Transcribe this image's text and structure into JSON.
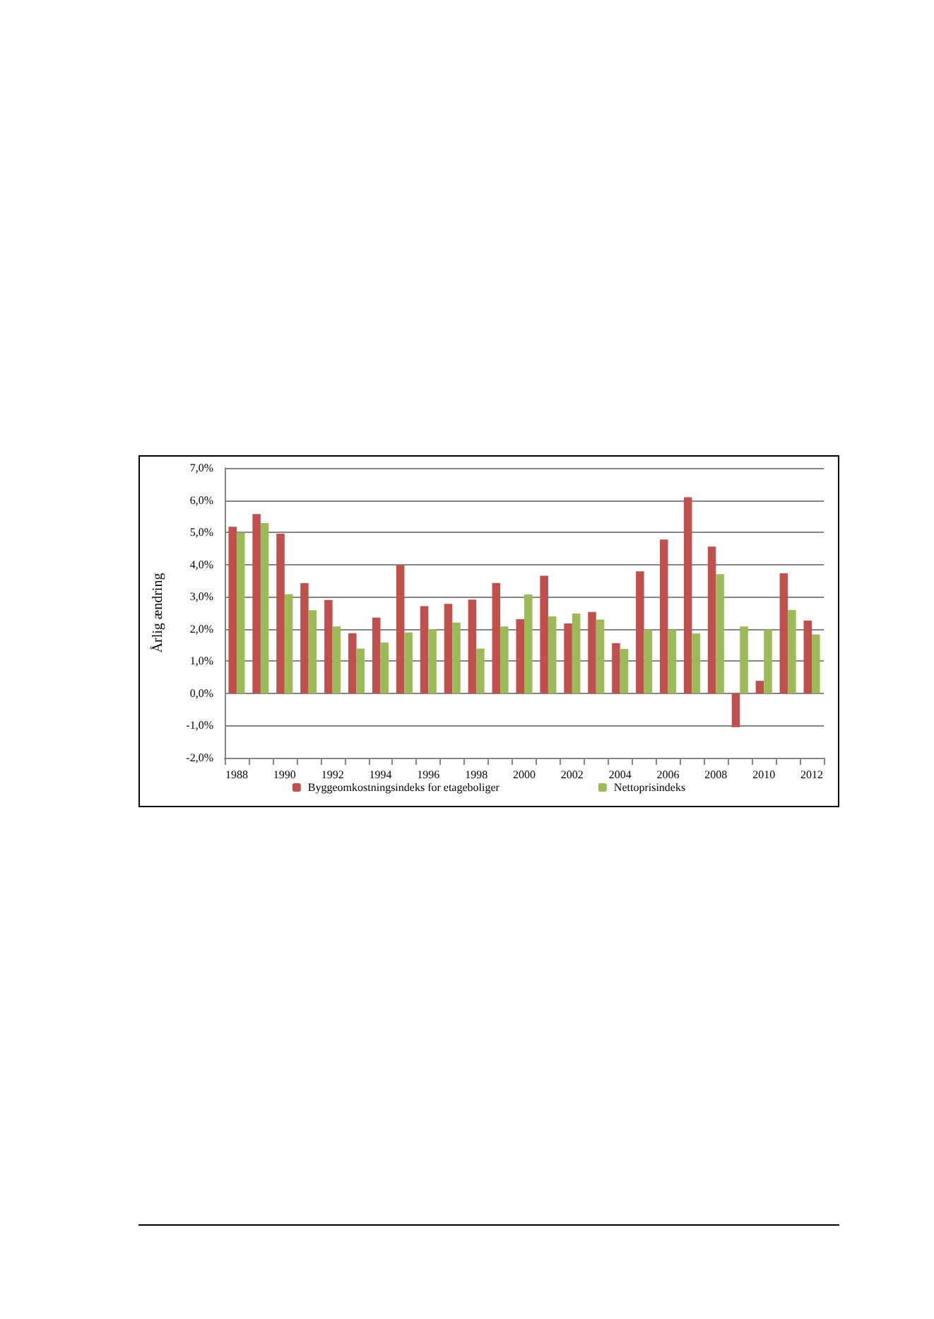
{
  "chart_data": {
    "type": "bar",
    "ylabel": "Årlig ændring",
    "categories": [
      "1988",
      null,
      "1990",
      null,
      "1992",
      null,
      "1994",
      null,
      "1996",
      null,
      "1998",
      null,
      "2000",
      null,
      "2002",
      null,
      "2004",
      null,
      "2006",
      null,
      "2008",
      null,
      "2010",
      null,
      "2012"
    ],
    "series": [
      {
        "name": "Byggeomkostningsindeks for etageboliger",
        "color": "#c0504d",
        "values": [
          5.17,
          5.57,
          4.96,
          3.42,
          2.9,
          1.87,
          2.35,
          3.98,
          2.71,
          2.78,
          2.91,
          3.43,
          2.3,
          3.65,
          2.17,
          2.53,
          1.56,
          3.79,
          4.78,
          6.09,
          4.56,
          -1.05,
          0.39,
          3.73,
          2.26
        ]
      },
      {
        "name": "Nettoprisindeks",
        "color": "#9bbb59",
        "values": [
          4.99,
          5.29,
          3.08,
          2.58,
          2.08,
          1.39,
          1.58,
          1.89,
          1.99,
          2.2,
          1.39,
          2.08,
          3.07,
          2.39,
          2.48,
          2.29,
          1.38,
          1.98,
          1.98,
          1.86,
          3.7,
          2.08,
          1.98,
          2.59,
          1.83
        ]
      }
    ],
    "ylim": [
      -2,
      7
    ],
    "yticks": [
      {
        "value": -2,
        "label": "-2,0%"
      },
      {
        "value": -1,
        "label": "-1,0%"
      },
      {
        "value": 0,
        "label": "0,0%"
      },
      {
        "value": 1,
        "label": "1,0%"
      },
      {
        "value": 2,
        "label": "2,0%"
      },
      {
        "value": 3,
        "label": "3,0%"
      },
      {
        "value": 4,
        "label": "4,0%"
      },
      {
        "value": 5,
        "label": "5,0%"
      },
      {
        "value": 6,
        "label": "6,0%"
      },
      {
        "value": 7,
        "label": "7,0%"
      }
    ],
    "grid": "y",
    "legend": "bottom"
  }
}
